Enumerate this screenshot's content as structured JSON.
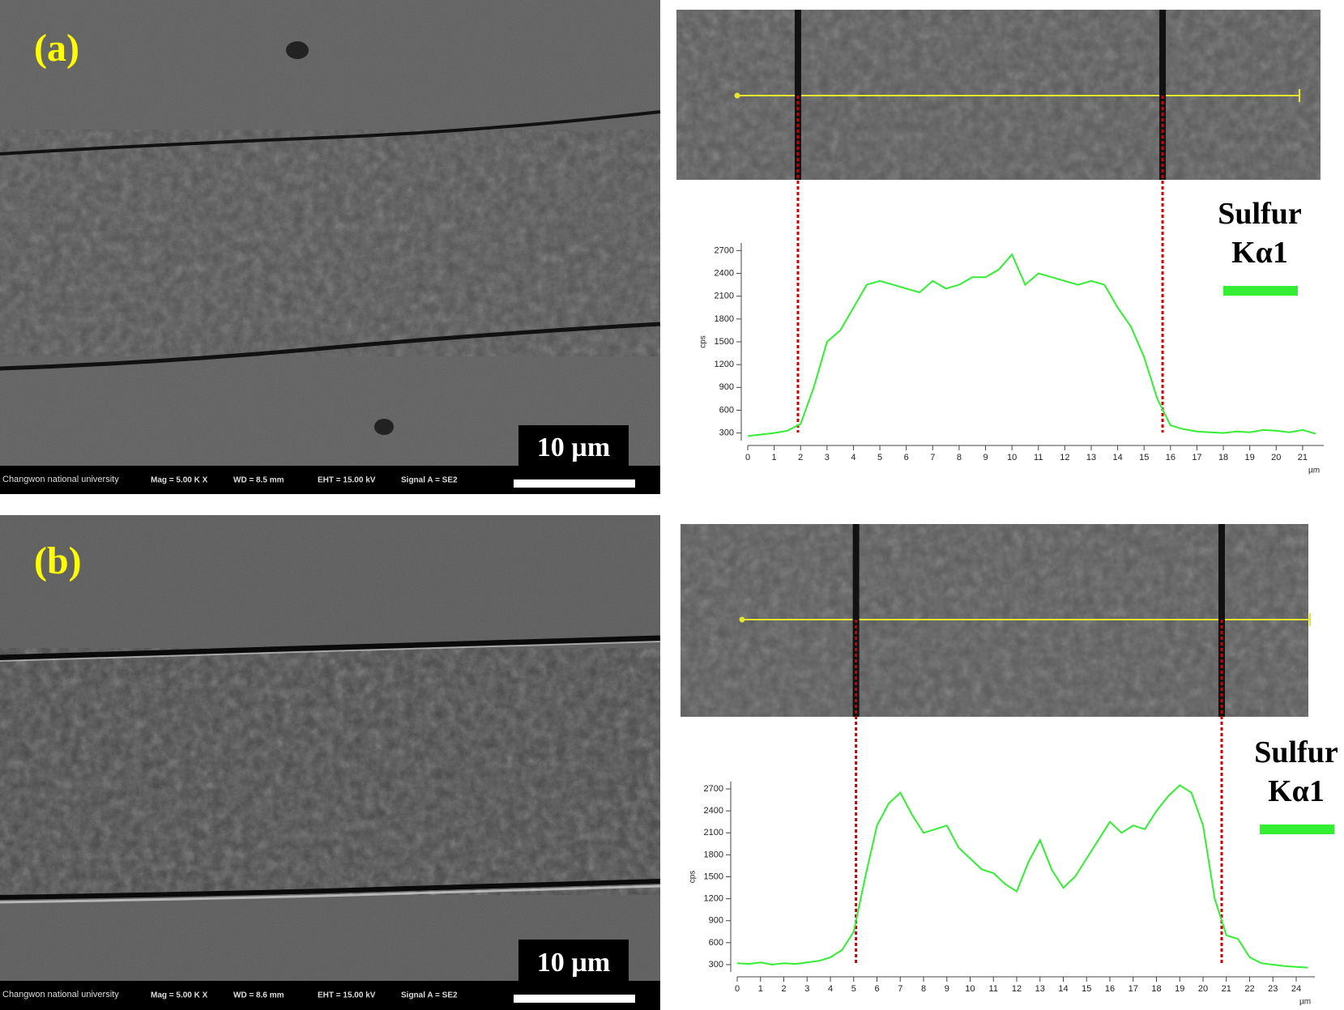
{
  "panels": [
    {
      "label": "(a)",
      "scale_bar": "10 µm",
      "info": [
        "Changwon national university",
        "Mag =   5.00 K X",
        "WD =  8.5 mm",
        "EHT = 15.00 kV",
        "Signal A = SE2"
      ]
    },
    {
      "label": "(b)",
      "scale_bar": "10 µm",
      "info": [
        "Changwon national university",
        "Mag =   5.00 K X",
        "WD =  8.6 mm",
        "EHT = 15.00 kV",
        "Signal A = SE2"
      ]
    }
  ],
  "chart_data": [
    {
      "type": "line",
      "xlabel": "µm",
      "ylabel": "cps",
      "x": [
        0,
        0.5,
        1,
        1.5,
        2,
        2.5,
        3,
        3.5,
        4,
        4.5,
        5,
        5.5,
        6,
        6.5,
        7,
        7.5,
        8,
        8.5,
        9,
        9.5,
        10,
        10.5,
        11,
        11.5,
        12,
        12.5,
        13,
        13.5,
        14,
        14.5,
        15,
        15.5,
        16,
        16.5,
        17,
        17.5,
        18,
        18.5,
        19,
        19.5,
        20,
        20.5,
        21,
        21.5
      ],
      "series": [
        {
          "name": "Sulfur Kα1",
          "color": "#33ee33",
          "values": [
            260,
            280,
            300,
            330,
            420,
            900,
            1500,
            1650,
            1950,
            2250,
            2300,
            2250,
            2200,
            2150,
            2300,
            2200,
            2250,
            2350,
            2350,
            2450,
            2650,
            2250,
            2400,
            2350,
            2300,
            2250,
            2300,
            2250,
            1950,
            1700,
            1300,
            750,
            400,
            350,
            320,
            310,
            300,
            320,
            310,
            340,
            330,
            310,
            340,
            290
          ]
        }
      ],
      "xlim": [
        0,
        21.8
      ],
      "ylim": [
        200,
        2800
      ],
      "xticks": [
        0,
        1,
        2,
        3,
        4,
        5,
        6,
        7,
        8,
        9,
        10,
        11,
        12,
        13,
        14,
        15,
        16,
        17,
        18,
        19,
        20,
        21
      ],
      "yticks": [
        300,
        600,
        900,
        1200,
        1500,
        1800,
        2100,
        2400,
        2700
      ],
      "legend": "right",
      "boundaries": {
        "color": "#cc0000",
        "x": [
          1.9,
          15.7
        ]
      }
    },
    {
      "type": "line",
      "xlabel": "µm",
      "ylabel": "cps",
      "x": [
        0,
        0.5,
        1,
        1.5,
        2,
        2.5,
        3,
        3.5,
        4,
        4.5,
        5,
        5.5,
        6,
        6.5,
        7,
        7.5,
        8,
        8.5,
        9,
        9.5,
        10,
        10.5,
        11,
        11.5,
        12,
        12.5,
        13,
        13.5,
        14,
        14.5,
        15,
        15.5,
        16,
        16.5,
        17,
        17.5,
        18,
        18.5,
        19,
        19.5,
        20,
        20.5,
        21,
        21.5,
        22,
        22.5,
        23,
        23.5,
        24,
        24.5
      ],
      "series": [
        {
          "name": "Sulfur Kα1",
          "color": "#33ee33",
          "values": [
            320,
            310,
            330,
            300,
            320,
            310,
            330,
            350,
            400,
            500,
            750,
            1500,
            2200,
            2500,
            2650,
            2350,
            2100,
            2150,
            2200,
            1900,
            1750,
            1600,
            1550,
            1400,
            1300,
            1700,
            2000,
            1600,
            1350,
            1500,
            1750,
            2000,
            2250,
            2100,
            2200,
            2150,
            2400,
            2600,
            2750,
            2650,
            2200,
            1200,
            700,
            650,
            400,
            320,
            300,
            280,
            270,
            260
          ]
        }
      ],
      "xlim": [
        0,
        24.8
      ],
      "ylim": [
        200,
        2800
      ],
      "xticks": [
        0,
        1,
        2,
        3,
        4,
        5,
        6,
        7,
        8,
        9,
        10,
        11,
        12,
        13,
        14,
        15,
        16,
        17,
        18,
        19,
        20,
        21,
        22,
        23,
        24
      ],
      "yticks": [
        300,
        600,
        900,
        1200,
        1500,
        1800,
        2100,
        2400,
        2700
      ],
      "legend": "right",
      "boundaries": {
        "color": "#cc0000",
        "x": [
          5.1,
          20.8
        ]
      }
    }
  ]
}
